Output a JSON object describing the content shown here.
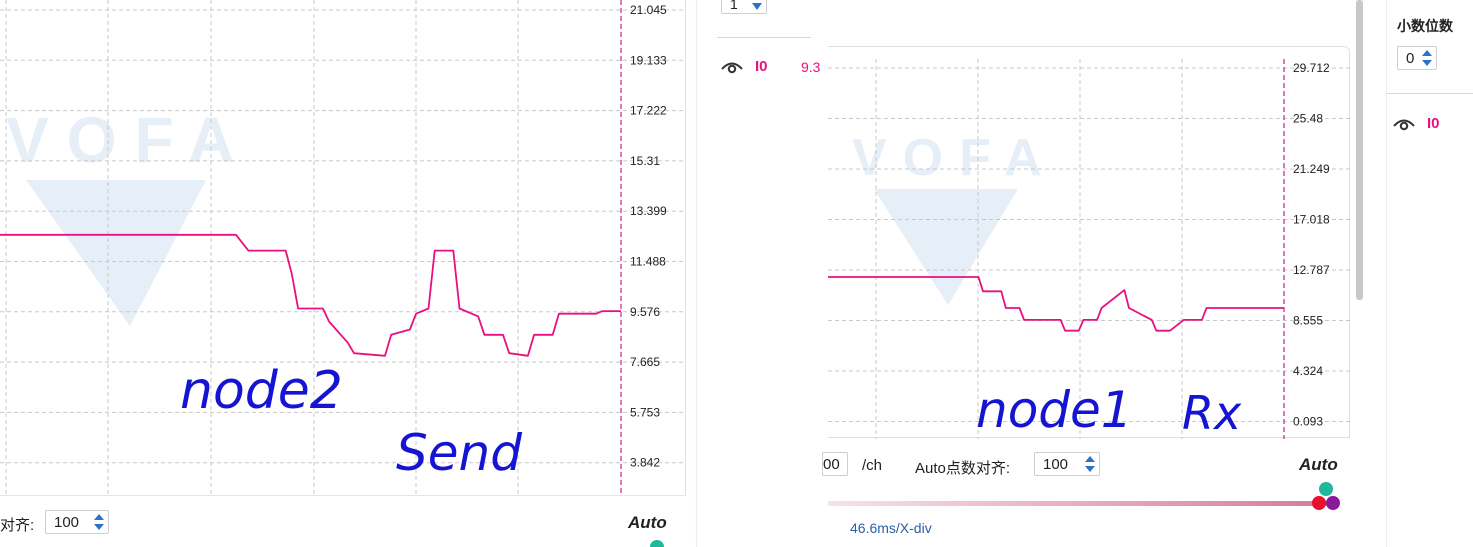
{
  "left": {
    "plot": {
      "y_ticks": [
        "21.045",
        "19.133",
        "17.222",
        "15.31",
        "13.399",
        "11.488",
        "9.576",
        "7.665",
        "5.753",
        "3.842"
      ],
      "watermark": "VOFA",
      "annotation_line1": "node2",
      "annotation_line2": "Send"
    },
    "bottom_bar": {
      "align_label": "对齐:",
      "align_value": "100",
      "auto_label": "Auto"
    },
    "side_panel": {
      "spinner_value": "1",
      "channel_name": "I0",
      "channel_value": "9.3"
    }
  },
  "right": {
    "plot": {
      "y_ticks": [
        "29.712",
        "25.48",
        "21.249",
        "17.018",
        "12.787",
        "8.555",
        "4.324",
        "0.093"
      ],
      "watermark": "VOFA",
      "annotation_line1": "node1",
      "annotation_rx": "Rx"
    },
    "bottom_bar": {
      "points_value": "00",
      "points_unit": "/ch",
      "auto_align_label": "Auto点数对齐:",
      "auto_align_value": "100",
      "auto_label": "Auto",
      "time_div": "46.6ms/X-div"
    },
    "side_panel": {
      "decimals_label": "小数位数",
      "decimals_value": "0",
      "channel_name": "I0"
    }
  },
  "colors": {
    "signal": "#e8107f",
    "cursor": "#c0249a",
    "grid": "#c8c8c8",
    "ink": "#1414d2",
    "watermark": "#e6eef8",
    "dot_teal": "#1fb89a",
    "dot_red": "#e8102a",
    "dot_purple": "#8a1a9a",
    "spinner_arrow": "#2b73c4"
  },
  "chart_data": [
    {
      "type": "line",
      "series": [
        {
          "name": "I0",
          "x": [
            0,
            38,
            39,
            40,
            46,
            47,
            48,
            52,
            53,
            56,
            57,
            62,
            63,
            66,
            67,
            69,
            70,
            73,
            74,
            77,
            78,
            81,
            82,
            85,
            86,
            89,
            90,
            96,
            97,
            100
          ],
          "values": [
            12.5,
            12.5,
            12.2,
            11.9,
            11.9,
            11.0,
            9.7,
            9.7,
            9.2,
            8.4,
            8.0,
            7.9,
            8.7,
            8.9,
            9.5,
            9.7,
            11.9,
            11.9,
            9.7,
            9.4,
            8.7,
            8.7,
            8.0,
            7.9,
            8.7,
            8.7,
            9.5,
            9.5,
            9.6,
            9.6
          ]
        }
      ],
      "yticks": [
        "21.045",
        "19.133",
        "17.222",
        "15.31",
        "13.399",
        "11.488",
        "9.576",
        "7.665",
        "5.753",
        "3.842"
      ],
      "ylim": [
        2.9,
        21.5
      ],
      "grid": true
    },
    {
      "type": "line",
      "series": [
        {
          "name": "I0",
          "x": [
            0,
            33,
            34,
            38,
            39,
            42,
            43,
            51,
            52,
            55,
            56,
            59,
            60,
            65,
            66,
            71,
            72,
            74,
            75,
            78,
            79,
            82,
            83,
            88,
            89,
            100
          ],
          "values": [
            12.2,
            12.2,
            11.0,
            11.0,
            9.6,
            9.6,
            8.6,
            8.6,
            7.7,
            7.7,
            8.6,
            8.6,
            9.6,
            11.1,
            9.6,
            8.6,
            7.7,
            7.7,
            7.7,
            8.6,
            8.6,
            8.6,
            9.6,
            9.6,
            9.6,
            9.6
          ]
        }
      ],
      "yticks": [
        "29.712",
        "25.48",
        "21.249",
        "17.018",
        "12.787",
        "8.555",
        "4.324",
        "0.093"
      ],
      "ylim": [
        0,
        31.0
      ],
      "grid": true
    }
  ]
}
